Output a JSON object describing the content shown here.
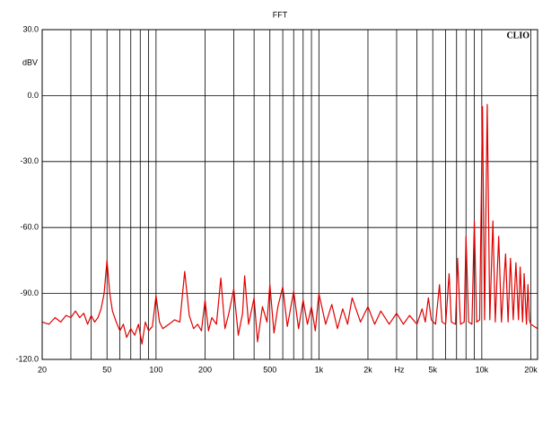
{
  "chart_data": {
    "type": "line",
    "title": "FFT",
    "y_label": "dBV",
    "x_label": "Hz",
    "annotation": "CLIO",
    "log_x": true,
    "grid": true,
    "xlim": [
      20,
      22000
    ],
    "ylim": [
      -120,
      30
    ],
    "xticks": [
      20,
      50,
      100,
      200,
      500,
      {
        "value": 1000,
        "label": "1k"
      },
      {
        "value": 2000,
        "label": "2k"
      },
      {
        "value": 5000,
        "label": "5k"
      },
      {
        "value": 10000,
        "label": "10k"
      },
      {
        "value": 20000,
        "label": "20k"
      }
    ],
    "xgrid_minor": [
      30,
      40,
      60,
      70,
      80,
      90,
      300,
      400,
      600,
      700,
      800,
      900,
      3000,
      4000,
      6000,
      7000,
      8000,
      9000
    ],
    "yticks": [
      {
        "value": 30,
        "label": "30.0"
      },
      {
        "value": 0,
        "label": "0.0"
      },
      {
        "value": -30,
        "label": "-30.0"
      },
      {
        "value": -60,
        "label": "-60.0"
      },
      {
        "value": -90,
        "label": "-90.0"
      },
      {
        "value": -120,
        "label": "-120.0"
      }
    ],
    "series": [
      {
        "color": "#e00000",
        "x": [
          20,
          22,
          24,
          26,
          28,
          30,
          32,
          34,
          36,
          38,
          40,
          42,
          44,
          46,
          48,
          50,
          52,
          54,
          57,
          60,
          63,
          66,
          70,
          74,
          78,
          82,
          86,
          90,
          95,
          100,
          105,
          110,
          120,
          130,
          140,
          150,
          160,
          170,
          180,
          190,
          200,
          210,
          220,
          235,
          250,
          265,
          280,
          300,
          320,
          340,
          350,
          370,
          400,
          420,
          450,
          480,
          500,
          530,
          560,
          600,
          640,
          700,
          750,
          800,
          850,
          900,
          950,
          1000,
          1100,
          1200,
          1300,
          1400,
          1500,
          1600,
          1800,
          2000,
          2200,
          2400,
          2700,
          3000,
          3300,
          3600,
          4000,
          4300,
          4500,
          4700,
          4900,
          5200,
          5500,
          5700,
          6000,
          6300,
          6500,
          6900,
          7100,
          7400,
          7800,
          8000,
          8300,
          8700,
          9000,
          9300,
          9700,
          10100,
          10400,
          10800,
          11200,
          11700,
          12100,
          12700,
          13200,
          14000,
          14500,
          15000,
          15600,
          16200,
          16800,
          17200,
          17800,
          18200,
          18800,
          19200,
          19600,
          20000,
          22000
        ],
        "values": [
          -103,
          -104,
          -101,
          -103,
          -100,
          -101,
          -98,
          -101,
          -99,
          -104,
          -100,
          -103,
          -101,
          -97,
          -90,
          -75,
          -90,
          -98,
          -103,
          -107,
          -104,
          -110,
          -106,
          -109,
          -104,
          -113,
          -103,
          -107,
          -105,
          -91,
          -103,
          -106,
          -104,
          -102,
          -103,
          -80,
          -100,
          -106,
          -104,
          -107,
          -93,
          -107,
          -101,
          -104,
          -83,
          -106,
          -99,
          -88,
          -109,
          -99,
          -82,
          -104,
          -92,
          -112,
          -96,
          -103,
          -86,
          -108,
          -96,
          -87,
          -105,
          -89,
          -106,
          -93,
          -104,
          -96,
          -107,
          -90,
          -104,
          -95,
          -106,
          -97,
          -104,
          -92,
          -103,
          -96,
          -104,
          -98,
          -104,
          -99,
          -104,
          -100,
          -104,
          -97,
          -103,
          -92,
          -102,
          -104,
          -86,
          -103,
          -104,
          -81,
          -103,
          -104,
          -74,
          -104,
          -103,
          -64,
          -103,
          -104,
          -57,
          -103,
          -102,
          -5,
          -102,
          -4,
          -102,
          -57,
          -103,
          -64,
          -103,
          -72,
          -103,
          -74,
          -102,
          -76,
          -102,
          -78,
          -103,
          -81,
          -104,
          -86,
          -102,
          -104,
          -106
        ]
      }
    ]
  }
}
